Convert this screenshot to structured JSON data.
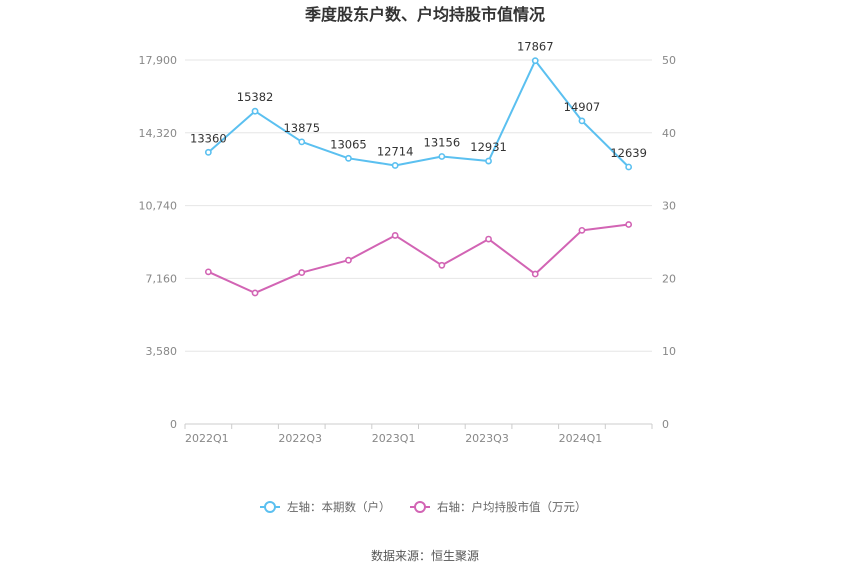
{
  "chart_data": {
    "type": "line",
    "title": "季度股东户数、户均持股市值情况",
    "categories": [
      "2022Q1",
      "2022Q2",
      "2022Q3",
      "2022Q4",
      "2023Q1",
      "2023Q2",
      "2023Q3",
      "2023Q4",
      "2024Q1",
      "2024Q2"
    ],
    "x_tick_labels": [
      "2022Q1",
      "",
      "2022Q3",
      "",
      "2023Q1",
      "",
      "2023Q3",
      "",
      "2024Q1",
      ""
    ],
    "left_axis": {
      "min": 0,
      "max": 17900,
      "ticks": [
        "0",
        "3,580",
        "7,160",
        "10,740",
        "14,320",
        "17,900"
      ]
    },
    "right_axis": {
      "min": 0,
      "max": 50,
      "ticks": [
        "0",
        "10",
        "20",
        "30",
        "40",
        "50"
      ]
    },
    "series": [
      {
        "name": "左轴：本期数（户）",
        "axis": "left",
        "color": "#5bc0f0",
        "values": [
          13360,
          15382,
          13875,
          13065,
          12714,
          13156,
          12931,
          17867,
          14907,
          12639
        ],
        "labels": [
          "13360",
          "15382",
          "13875",
          "13065",
          "12714",
          "13156",
          "12931",
          "17867",
          "14907",
          "12639"
        ]
      },
      {
        "name": "右轴：户均持股市值（万元）",
        "axis": "right",
        "color": "#d264b4",
        "values": [
          20.9,
          18.0,
          20.8,
          22.5,
          25.9,
          21.8,
          25.4,
          20.6,
          26.6,
          27.4
        ]
      }
    ],
    "grid": true,
    "legend_position": "bottom",
    "source": "数据来源：恒生聚源"
  }
}
